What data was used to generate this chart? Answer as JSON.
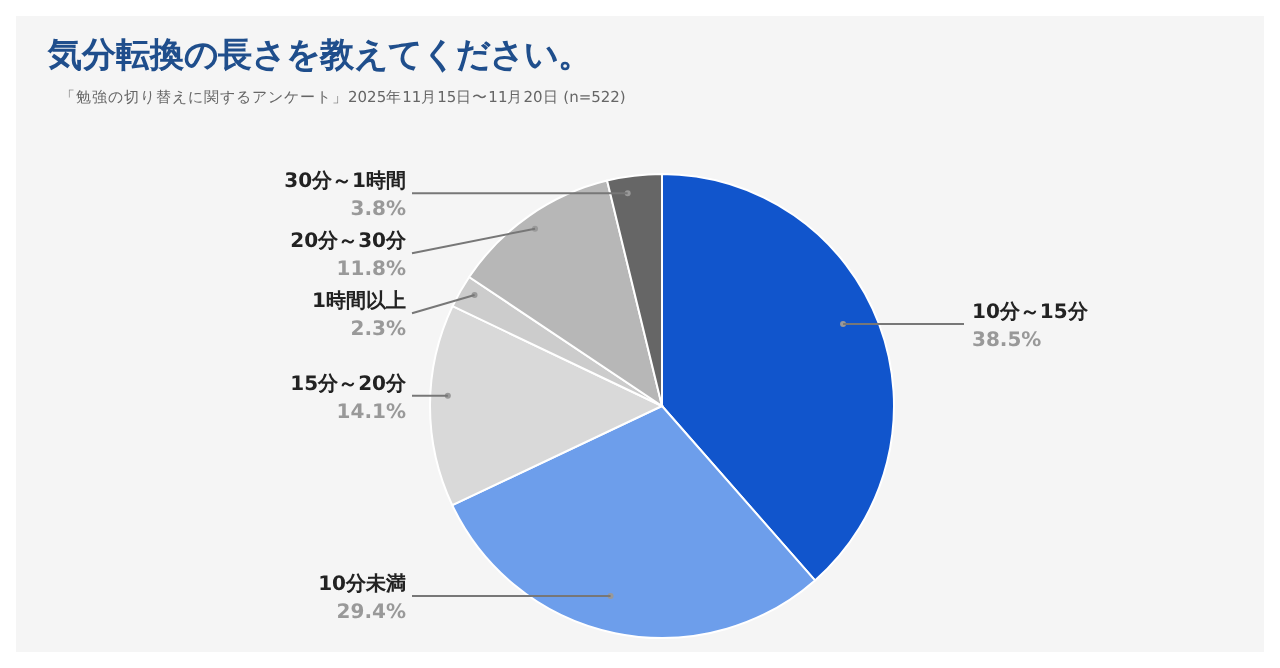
{
  "chart_data": {
    "type": "pie",
    "title": "気分転換の長さを教えてください。",
    "subtitle": "「勉強の切り替えに関するアンケート」2025年11月15日〜11月20日 (n=522)",
    "categories": [
      "10分～15分",
      "10分未満",
      "15分～20分",
      "1時間以上",
      "20分～30分",
      "30分～1時間"
    ],
    "values": [
      38.5,
      29.4,
      14.1,
      2.3,
      11.8,
      3.8
    ],
    "value_labels": [
      "38.5%",
      "29.4%",
      "14.1%",
      "2.3%",
      "11.8%",
      "3.8%"
    ],
    "colors": [
      "#1155cc",
      "#6d9eeb",
      "#d9d9d9",
      "#cccccc",
      "#b7b7b7",
      "#666666"
    ],
    "legend": false
  }
}
